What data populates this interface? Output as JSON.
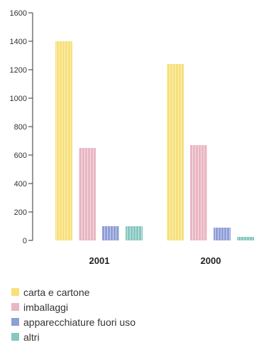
{
  "chart_data": {
    "type": "bar",
    "categories": [
      "2001",
      "2000"
    ],
    "series": [
      {
        "name": "carta e cartone",
        "values": [
          1400,
          1240
        ],
        "color": "#f7e07a"
      },
      {
        "name": "imballaggi",
        "values": [
          650,
          670
        ],
        "color": "#e9b6c3"
      },
      {
        "name": "apparecchiature fuori uso",
        "values": [
          100,
          90
        ],
        "color": "#8f9ed6"
      },
      {
        "name": "altri",
        "values": [
          100,
          25
        ],
        "color": "#86c7c0"
      }
    ],
    "title": "",
    "xlabel": "",
    "ylabel": "",
    "ylim": [
      0,
      1600
    ],
    "yticks": [
      "0",
      "200",
      "400",
      "600",
      "800",
      "1000",
      "1200",
      "1400",
      "1600"
    ],
    "grid": false,
    "legend_position": "bottom-left"
  }
}
